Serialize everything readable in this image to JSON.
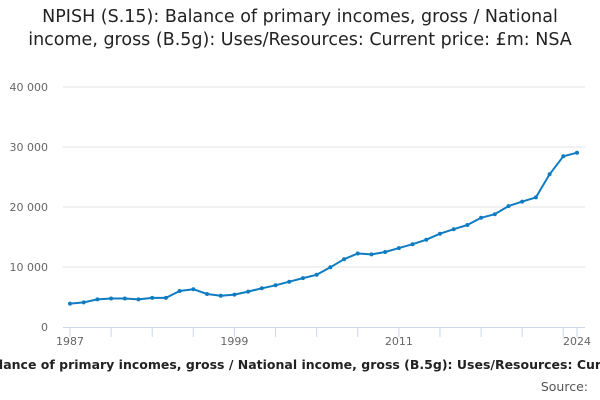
{
  "chart_data": {
    "type": "line",
    "title": "NPISH (S.15): Balance of primary incomes, gross / National income, gross (B.5g): Uses/Resources: Current price: £m: NSA",
    "xlabel": "lance of primary incomes, gross / National income, gross (B.5g): Uses/Resources: Cur",
    "ylabel": "",
    "source_label": "Source:",
    "ylim": [
      0,
      40000
    ],
    "yticks": [
      0,
      10000,
      20000,
      30000,
      40000
    ],
    "ytick_labels": [
      "0",
      "10 000",
      "20 000",
      "30 000",
      "40 000"
    ],
    "xtick_labels": [
      "1987",
      "1999",
      "2011",
      "2024"
    ],
    "grid": true,
    "line_color": "#0f7cc1",
    "x": [
      1987,
      1988,
      1989,
      1990,
      1991,
      1992,
      1993,
      1994,
      1995,
      1996,
      1997,
      1998,
      1999,
      2000,
      2001,
      2002,
      2003,
      2004,
      2005,
      2006,
      2007,
      2008,
      2009,
      2010,
      2011,
      2012,
      2013,
      2014,
      2015,
      2016,
      2017,
      2018,
      2019,
      2020,
      2021,
      2022,
      2023,
      2024
    ],
    "values": [
      3900,
      4100,
      4600,
      4750,
      4750,
      4600,
      4850,
      4850,
      6000,
      6300,
      5500,
      5200,
      5400,
      5900,
      6450,
      6950,
      7550,
      8150,
      8700,
      9950,
      11300,
      12250,
      12100,
      12500,
      13150,
      13800,
      14550,
      15550,
      16300,
      17000,
      18200,
      18800,
      20150,
      20900,
      21600,
      25450,
      28450,
      29050
    ]
  }
}
